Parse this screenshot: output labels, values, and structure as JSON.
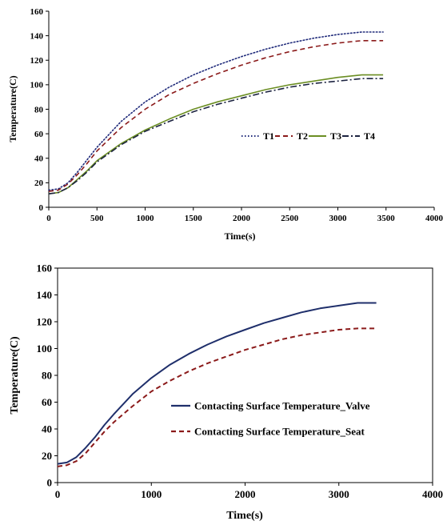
{
  "chart_data": [
    {
      "type": "line",
      "title": "",
      "xlabel": "Time(s)",
      "ylabel": "Temperature(C)",
      "xlim": [
        0,
        4000
      ],
      "ylim": [
        0,
        160
      ],
      "xticks": [
        "0",
        "500",
        "1000",
        "1500",
        "2000",
        "2500",
        "3000",
        "3500",
        "4000"
      ],
      "yticks": [
        "0",
        "20",
        "40",
        "60",
        "80",
        "100",
        "120",
        "140",
        "160"
      ],
      "grid": false,
      "legend_position": "right-middle",
      "series": [
        {
          "name": "T1",
          "color": "#1f2a7a",
          "dash": "dotted",
          "x": [
            0,
            100,
            200,
            300,
            400,
            500,
            750,
            1000,
            1250,
            1500,
            1750,
            2000,
            2250,
            2500,
            2750,
            3000,
            3250,
            3470
          ],
          "y": [
            14,
            15,
            20,
            29,
            39,
            49,
            70,
            86,
            98,
            108,
            116,
            123,
            129,
            134,
            138,
            141,
            143,
            143
          ]
        },
        {
          "name": "T2",
          "color": "#8b1a1a",
          "dash": "dashed",
          "x": [
            0,
            100,
            200,
            300,
            400,
            500,
            750,
            1000,
            1250,
            1500,
            1750,
            2000,
            2250,
            2500,
            2750,
            3000,
            3250,
            3470
          ],
          "y": [
            13,
            14,
            19,
            27,
            36,
            46,
            65,
            80,
            92,
            101,
            109,
            116,
            122,
            127,
            131,
            134,
            136,
            136
          ]
        },
        {
          "name": "T3",
          "color": "#6b8e23",
          "dash": "solid",
          "x": [
            0,
            100,
            200,
            300,
            400,
            500,
            750,
            1000,
            1250,
            1500,
            1750,
            2000,
            2250,
            2500,
            2750,
            3000,
            3250,
            3470
          ],
          "y": [
            11,
            12,
            16,
            23,
            30,
            38,
            52,
            63,
            72,
            80,
            86,
            91,
            96,
            100,
            103,
            106,
            108,
            108
          ]
        },
        {
          "name": "T4",
          "color": "#1c2340",
          "dash": "dashdot",
          "x": [
            0,
            100,
            200,
            300,
            400,
            500,
            750,
            1000,
            1250,
            1500,
            1750,
            2000,
            2250,
            2500,
            2750,
            3000,
            3250,
            3470
          ],
          "y": [
            11,
            12,
            16,
            22,
            29,
            37,
            51,
            62,
            70,
            78,
            84,
            89,
            94,
            98,
            101,
            103,
            105,
            105
          ]
        }
      ]
    },
    {
      "type": "line",
      "title": "",
      "xlabel": "Time(s)",
      "ylabel": "Temperature(C)",
      "xlim": [
        0,
        4000
      ],
      "ylim": [
        0,
        160
      ],
      "xticks": [
        "0",
        "1000",
        "2000",
        "3000",
        "4000"
      ],
      "yticks": [
        "0",
        "20",
        "40",
        "60",
        "80",
        "100",
        "120",
        "140",
        "160"
      ],
      "grid": false,
      "legend_position": "right-middle",
      "series": [
        {
          "name": "Contacting Surface Temperature_Valve",
          "color": "#1f2f6b",
          "dash": "solid",
          "x": [
            0,
            100,
            200,
            300,
            400,
            500,
            600,
            800,
            1000,
            1200,
            1400,
            1600,
            1800,
            2000,
            2200,
            2400,
            2600,
            2800,
            3000,
            3200,
            3400
          ],
          "y": [
            14,
            15,
            19,
            26,
            34,
            43,
            51,
            66,
            78,
            88,
            96,
            103,
            109,
            114,
            119,
            123,
            127,
            130,
            132,
            134,
            134
          ]
        },
        {
          "name": "Contacting Surface Temperature_Seat",
          "color": "#8b1a1a",
          "dash": "dashed",
          "x": [
            0,
            100,
            200,
            300,
            400,
            500,
            600,
            800,
            1000,
            1200,
            1400,
            1600,
            1800,
            2000,
            2200,
            2400,
            2600,
            2800,
            3000,
            3200,
            3400
          ],
          "y": [
            12,
            13,
            16,
            22,
            30,
            38,
            45,
            57,
            68,
            76,
            83,
            89,
            94,
            99,
            103,
            107,
            110,
            112,
            114,
            115,
            115
          ]
        }
      ]
    }
  ]
}
